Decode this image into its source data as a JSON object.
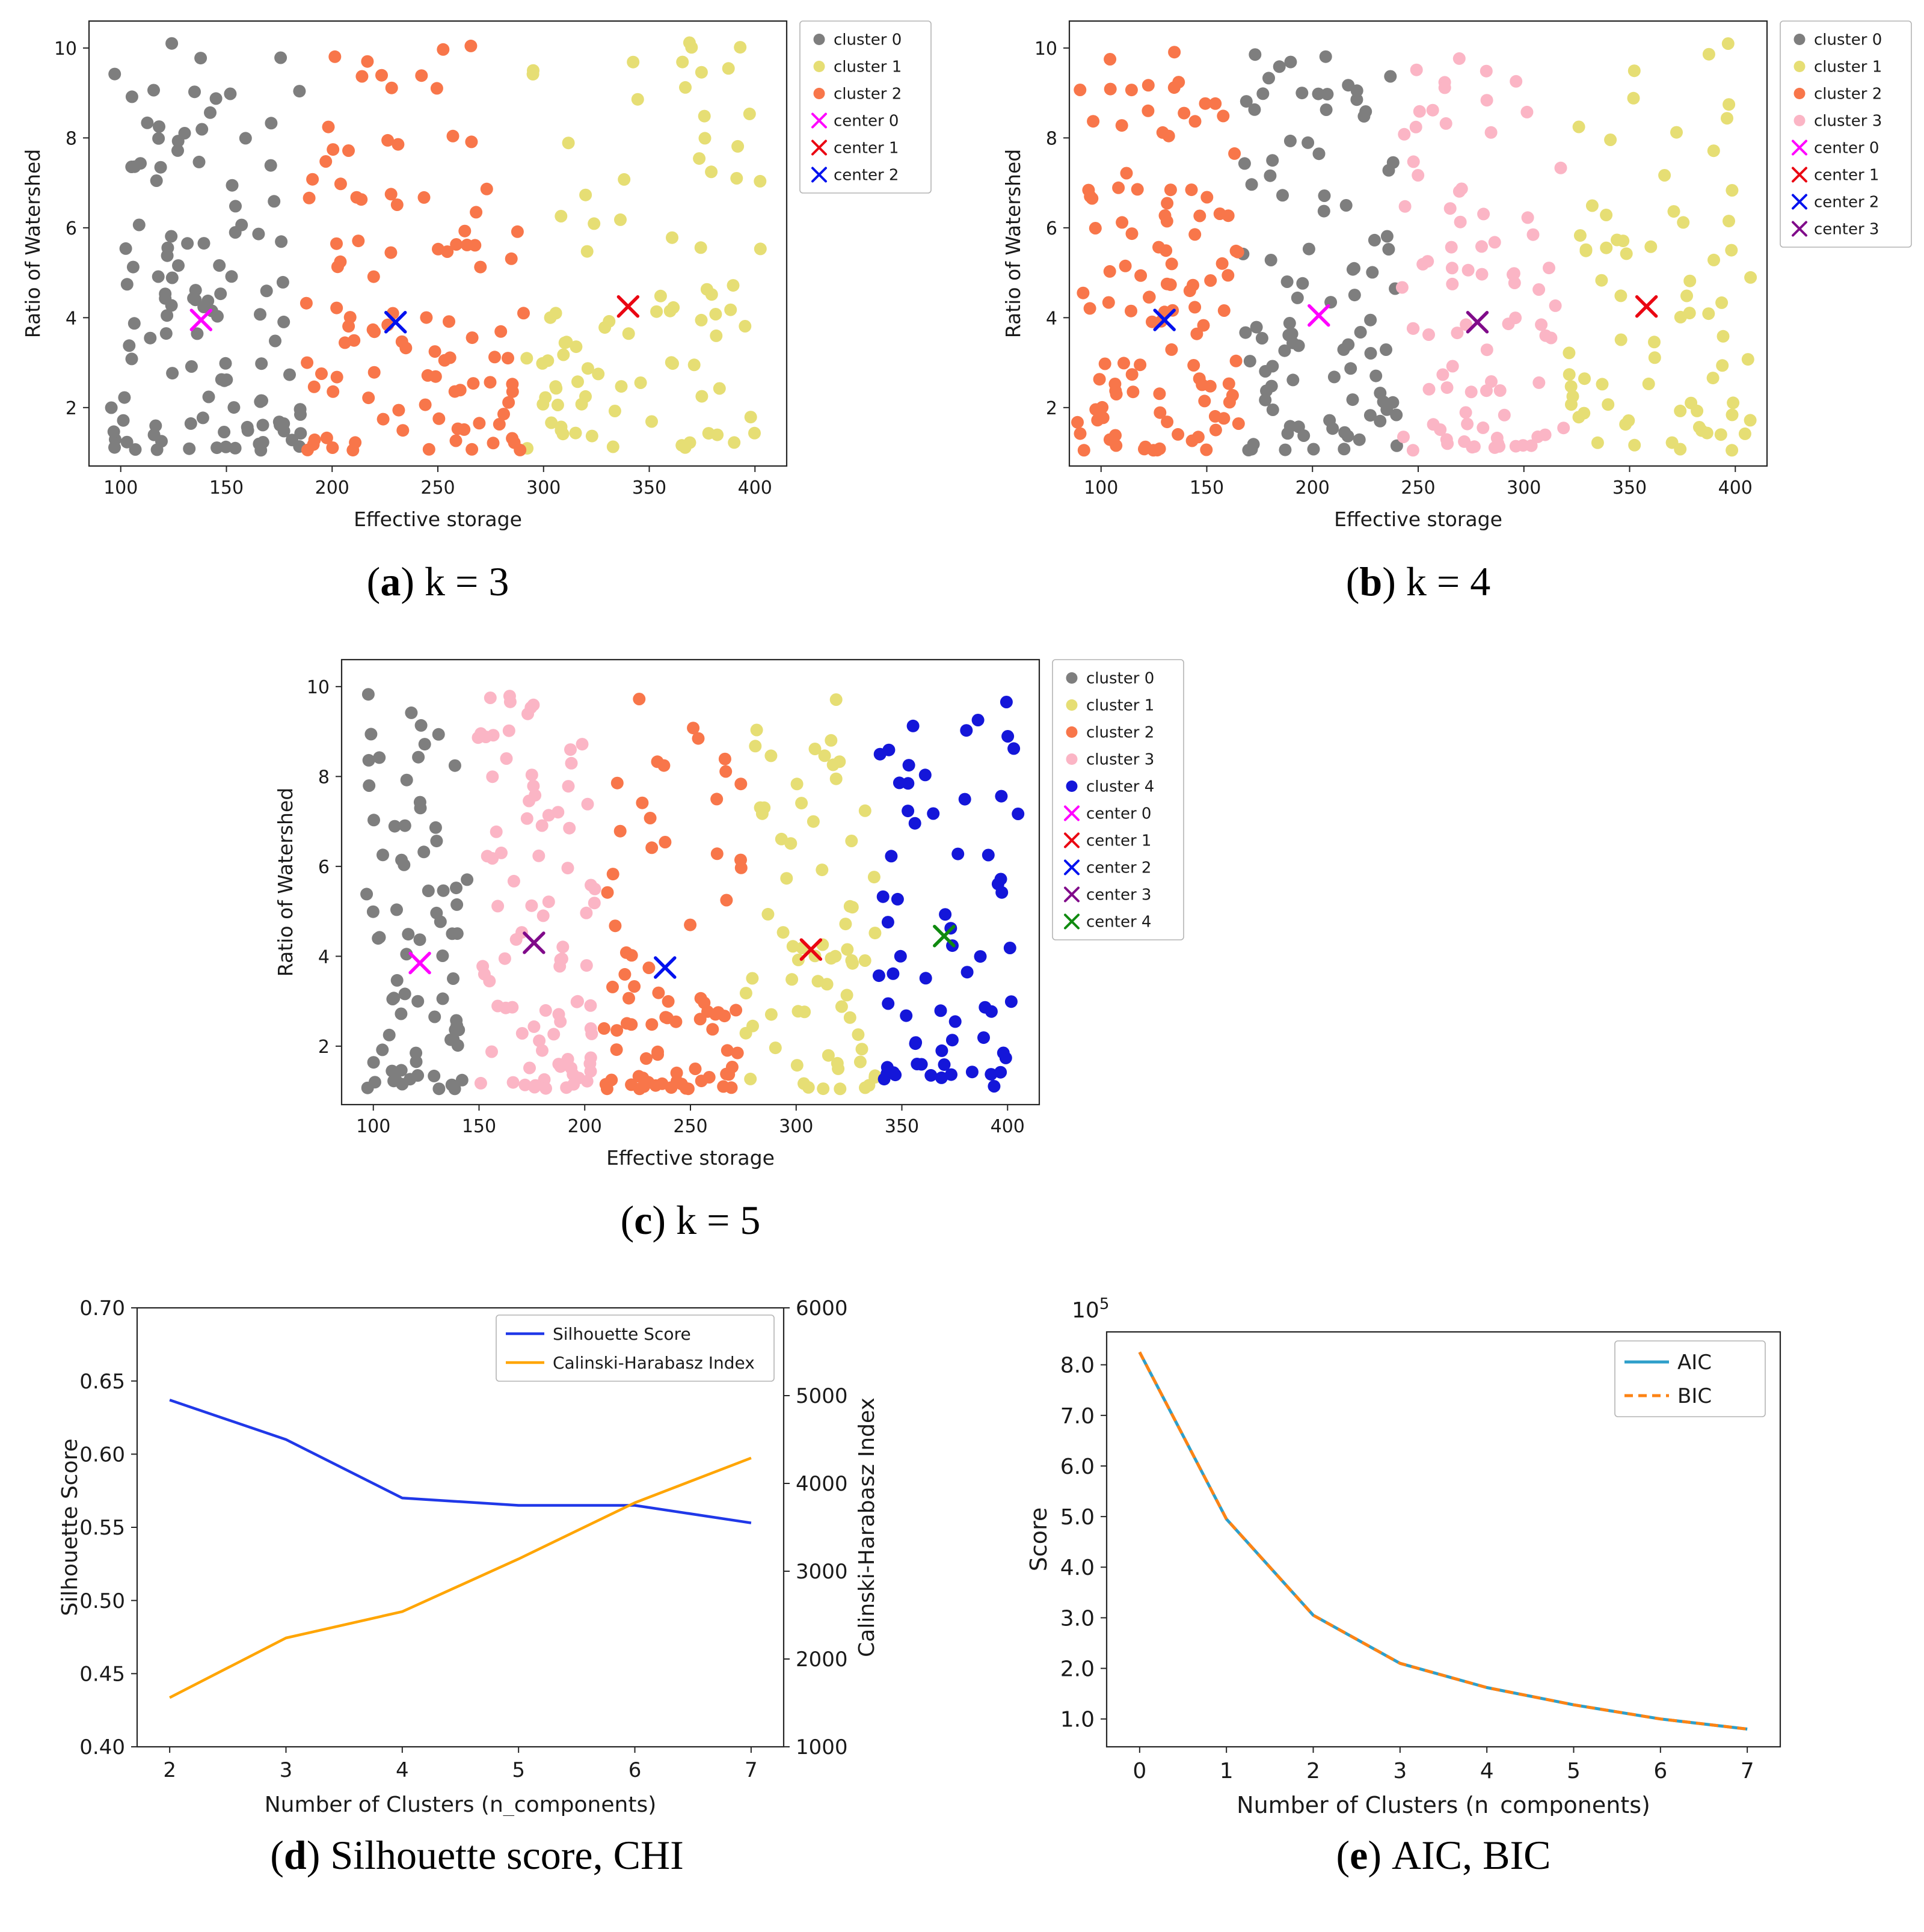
{
  "captions": {
    "a": {
      "letter": "a",
      "text": "k = 3"
    },
    "b": {
      "letter": "b",
      "text": "k = 4"
    },
    "c": {
      "letter": "c",
      "text": "k = 5"
    },
    "d": {
      "letter": "d",
      "text": "Silhouette score, CHI"
    },
    "e": {
      "letter": "e",
      "text": "AIC, BIC"
    }
  },
  "chart_data": [
    {
      "id": "scatter-k3",
      "type": "scatter",
      "panel": "a",
      "xlabel": "Effective storage",
      "ylabel": "Ratio of Watershed",
      "xlim": [
        85,
        415
      ],
      "ylim": [
        0.7,
        10.6
      ],
      "xticks": [
        100,
        150,
        200,
        250,
        300,
        350,
        400
      ],
      "yticks": [
        2,
        4,
        6,
        8,
        10
      ],
      "clusters": [
        {
          "label": "cluster 0",
          "color": "#7e7e7e",
          "n": 118,
          "x_range": [
            95,
            186
          ],
          "seed": 3
        },
        {
          "label": "cluster 1",
          "color": "#e6de74",
          "n": 88,
          "x_range": [
            292,
            408
          ],
          "seed": 5
        },
        {
          "label": "cluster 2",
          "color": "#f8764a",
          "n": 104,
          "x_range": [
            187,
            291
          ],
          "seed": 8
        }
      ],
      "centers": [
        {
          "label": "center 0",
          "color": "#ff00ff",
          "x": 138,
          "y": 3.95
        },
        {
          "label": "center 1",
          "color": "#ea0612",
          "x": 340,
          "y": 4.25
        },
        {
          "label": "center 2",
          "color": "#0011ee",
          "x": 230,
          "y": 3.9
        }
      ]
    },
    {
      "id": "scatter-k4",
      "type": "scatter",
      "panel": "b",
      "xlabel": "Effective storage",
      "ylabel": "Ratio of Watershed",
      "xlim": [
        85,
        415
      ],
      "ylim": [
        0.7,
        10.6
      ],
      "xticks": [
        100,
        150,
        200,
        250,
        300,
        350,
        400
      ],
      "yticks": [
        2,
        4,
        6,
        8,
        10
      ],
      "clusters": [
        {
          "label": "cluster 0",
          "color": "#7e7e7e",
          "n": 96,
          "x_range": [
            167,
            240
          ],
          "seed": 21
        },
        {
          "label": "cluster 1",
          "color": "#e6de74",
          "n": 72,
          "x_range": [
            321,
            408
          ],
          "seed": 22
        },
        {
          "label": "cluster 2",
          "color": "#f8764a",
          "n": 112,
          "x_range": [
            88,
            166
          ],
          "seed": 23
        },
        {
          "label": "cluster 3",
          "color": "#fbb5c5",
          "n": 84,
          "x_range": [
            241,
            320
          ],
          "seed": 24
        }
      ],
      "centers": [
        {
          "label": "center 0",
          "color": "#ff00ff",
          "x": 203,
          "y": 4.05
        },
        {
          "label": "center 1",
          "color": "#ea0612",
          "x": 358,
          "y": 4.25
        },
        {
          "label": "center 2",
          "color": "#0011ee",
          "x": 130,
          "y": 3.95
        },
        {
          "label": "center 3",
          "color": "#800b8a",
          "x": 278,
          "y": 3.9
        }
      ]
    },
    {
      "id": "scatter-k5",
      "type": "scatter",
      "panel": "c",
      "xlabel": "Effective storage",
      "ylabel": "Ratio of Watershed",
      "xlim": [
        85,
        415
      ],
      "ylim": [
        0.7,
        10.6
      ],
      "xticks": [
        100,
        150,
        200,
        250,
        300,
        350,
        400
      ],
      "yticks": [
        2,
        4,
        6,
        8,
        10
      ],
      "clusters": [
        {
          "label": "cluster 0",
          "color": "#7e7e7e",
          "n": 76,
          "x_range": [
            96,
            148
          ],
          "seed": 31
        },
        {
          "label": "cluster 1",
          "color": "#e6de74",
          "n": 70,
          "x_range": [
            275,
            338
          ],
          "seed": 32
        },
        {
          "label": "cluster 2",
          "color": "#f8764a",
          "n": 80,
          "x_range": [
            206,
            274
          ],
          "seed": 33
        },
        {
          "label": "cluster 3",
          "color": "#fbb5c5",
          "n": 90,
          "x_range": [
            149,
            205
          ],
          "seed": 34
        },
        {
          "label": "cluster 4",
          "color": "#1416d9",
          "n": 66,
          "x_range": [
            336,
            406
          ],
          "seed": 35
        }
      ],
      "centers": [
        {
          "label": "center 0",
          "color": "#ff00ff",
          "x": 122,
          "y": 3.85
        },
        {
          "label": "center 1",
          "color": "#ea0612",
          "x": 307,
          "y": 4.15
        },
        {
          "label": "center 2",
          "color": "#0011ee",
          "x": 238,
          "y": 3.75
        },
        {
          "label": "center 3",
          "color": "#800b8a",
          "x": 176,
          "y": 4.3
        },
        {
          "label": "center 4",
          "color": "#0f8a0f",
          "x": 370,
          "y": 4.45
        }
      ]
    },
    {
      "id": "line-metrics",
      "type": "line",
      "panel": "d",
      "xlabel": "Number of Clusters (n_components)",
      "ylabel_left": "Silhouette Score",
      "ylabel_right": "Calinski-Harabasz Index",
      "x": [
        2,
        3,
        4,
        5,
        6,
        7
      ],
      "xticks": [
        2,
        3,
        4,
        5,
        6,
        7
      ],
      "xlim": [
        1.72,
        7.28
      ],
      "left": {
        "lim": [
          0.4,
          0.7
        ],
        "values": [
          0.4,
          0.45,
          0.5,
          0.55,
          0.6,
          0.65,
          0.7
        ],
        "labels": [
          "0.40",
          "0.45",
          "0.50",
          "0.55",
          "0.60",
          "0.65",
          "0.70"
        ]
      },
      "right": {
        "lim": [
          1000,
          6000
        ],
        "values": [
          1000,
          2000,
          3000,
          4000,
          5000,
          6000
        ],
        "labels": [
          "1000",
          "2000",
          "3000",
          "4000",
          "5000",
          "6000"
        ]
      },
      "series": [
        {
          "name": "Silhouette Score",
          "color": "#2038e8",
          "axis": "left",
          "y": [
            0.637,
            0.61,
            0.57,
            0.565,
            0.565,
            0.553
          ]
        },
        {
          "name": "Calinski-Harabasz Index",
          "color": "#ffa502",
          "axis": "right",
          "y": [
            1560,
            2240,
            2540,
            3140,
            3780,
            4290
          ]
        }
      ]
    },
    {
      "id": "line-aicbic",
      "type": "line",
      "panel": "e",
      "xlabel": "Number of Clusters (n_components)",
      "ylabel_left": "Score",
      "offset": {
        "base": "10",
        "exp": "5"
      },
      "x": [
        0,
        1,
        2,
        3,
        4,
        5,
        6,
        7
      ],
      "xticks": [
        0,
        1,
        2,
        3,
        4,
        5,
        6,
        7
      ],
      "xlim": [
        -0.38,
        7.38
      ],
      "left": {
        "lim": [
          0.45,
          8.65
        ],
        "values": [
          1,
          2,
          3,
          4,
          5,
          6,
          7,
          8
        ],
        "labels": [
          "1.0",
          "2.0",
          "3.0",
          "4.0",
          "5.0",
          "6.0",
          "7.0",
          "8.0"
        ]
      },
      "series": [
        {
          "name": "AIC",
          "color": "#2e9fca",
          "axis": "left",
          "y": [
            8.25,
            4.95,
            3.05,
            2.1,
            1.62,
            1.28,
            1.0,
            0.8
          ]
        },
        {
          "name": "BIC",
          "color": "#fd8314",
          "axis": "left",
          "dash": "14 9",
          "y": [
            8.25,
            4.95,
            3.05,
            2.1,
            1.62,
            1.28,
            1.0,
            0.8
          ]
        }
      ]
    }
  ]
}
